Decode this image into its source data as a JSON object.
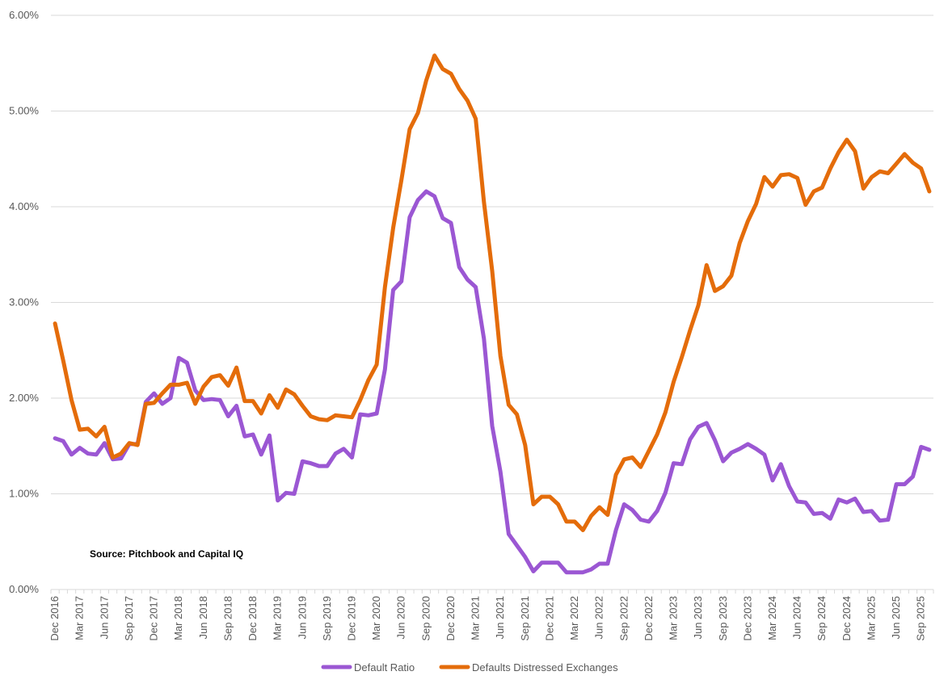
{
  "chart_data": {
    "type": "line",
    "title": "",
    "xlabel": "",
    "ylabel": "",
    "ylim": [
      0,
      0.06
    ],
    "y_ticks": [
      0.0,
      0.01,
      0.02,
      0.03,
      0.04,
      0.05,
      0.06
    ],
    "y_tick_labels": [
      "0.00%",
      "1.00%",
      "2.00%",
      "3.00%",
      "4.00%",
      "5.00%",
      "6.00%"
    ],
    "x_tick_labels": [
      "Dec 2016",
      "Mar 2017",
      "Jun 2017",
      "Sep 2017",
      "Dec 2017",
      "Mar 2018",
      "Jun 2018",
      "Sep 2018",
      "Dec 2018",
      "Mar 2019",
      "Jun 2019",
      "Sep 2019",
      "Dec 2019",
      "Mar 2020",
      "Jun 2020",
      "Sep 2020",
      "Dec 2020",
      "Mar 2021",
      "Jun 2021",
      "Sep 2021",
      "Dec 2021",
      "Mar 2022",
      "Jun 2022",
      "Sep 2022",
      "Dec 2022",
      "Mar 2023",
      "Jun 2023",
      "Sep 2023",
      "Dec 2023",
      "Mar 2024",
      "Jun 2024",
      "Sep 2024",
      "Dec 2024",
      "Mar 2025",
      "Jun 2025",
      "Sep 2025"
    ],
    "period": "monthly, Dec 2016 - Oct 2025",
    "grid": true,
    "legend_position": "bottom",
    "source_note": "Source: Pitchbook and Capital IQ",
    "series": [
      {
        "name": "Default Ratio",
        "color": "#9B57D3",
        "values": [
          1.58,
          1.55,
          1.41,
          1.48,
          1.42,
          1.41,
          1.53,
          1.36,
          1.37,
          1.52,
          1.52,
          1.96,
          2.05,
          1.94,
          2.0,
          2.42,
          2.37,
          2.08,
          1.98,
          1.99,
          1.98,
          1.81,
          1.92,
          1.6,
          1.62,
          1.41,
          1.61,
          0.93,
          1.01,
          1.0,
          1.34,
          1.32,
          1.29,
          1.29,
          1.42,
          1.47,
          1.38,
          1.83,
          1.82,
          1.84,
          2.3,
          3.13,
          3.22,
          3.89,
          4.07,
          4.16,
          4.11,
          3.88,
          3.83,
          3.37,
          3.24,
          3.16,
          2.62,
          1.71,
          1.23,
          0.58,
          0.46,
          0.34,
          0.19,
          0.28,
          0.28,
          0.28,
          0.18,
          0.18,
          0.18,
          0.21,
          0.27,
          0.27,
          0.62,
          0.89,
          0.83,
          0.73,
          0.71,
          0.82,
          1.01,
          1.32,
          1.31,
          1.57,
          1.7,
          1.74,
          1.56,
          1.34,
          1.43,
          1.47,
          1.52,
          1.47,
          1.41,
          1.14,
          1.31,
          1.08,
          0.92,
          0.91,
          0.79,
          0.8,
          0.74,
          0.94,
          0.91,
          0.95,
          0.81,
          0.82,
          0.72,
          0.73,
          1.1,
          1.1,
          1.18,
          1.49,
          1.46
        ]
      },
      {
        "name": "Defaults Distressed Exchanges",
        "color": "#E46C0A",
        "values": [
          2.78,
          2.39,
          1.98,
          1.67,
          1.68,
          1.6,
          1.7,
          1.38,
          1.42,
          1.53,
          1.51,
          1.94,
          1.95,
          2.05,
          2.14,
          2.14,
          2.16,
          1.94,
          2.12,
          2.22,
          2.24,
          2.13,
          2.32,
          1.97,
          1.97,
          1.84,
          2.03,
          1.9,
          2.09,
          2.04,
          1.92,
          1.81,
          1.78,
          1.77,
          1.82,
          1.81,
          1.8,
          1.98,
          2.19,
          2.35,
          3.16,
          3.78,
          4.28,
          4.81,
          4.98,
          5.32,
          5.58,
          5.44,
          5.39,
          5.23,
          5.11,
          4.92,
          4.05,
          3.33,
          2.44,
          1.93,
          1.83,
          1.51,
          0.89,
          0.97,
          0.97,
          0.89,
          0.71,
          0.71,
          0.62,
          0.77,
          0.86,
          0.78,
          1.2,
          1.36,
          1.38,
          1.28,
          1.45,
          1.62,
          1.85,
          2.17,
          2.43,
          2.71,
          2.97,
          3.39,
          3.12,
          3.17,
          3.28,
          3.62,
          3.85,
          4.03,
          4.31,
          4.21,
          4.33,
          4.34,
          4.3,
          4.02,
          4.16,
          4.2,
          4.4,
          4.57,
          4.7,
          4.58,
          4.19,
          4.31,
          4.37,
          4.35,
          4.45,
          4.55,
          4.46,
          4.4,
          4.16
        ]
      }
    ]
  }
}
